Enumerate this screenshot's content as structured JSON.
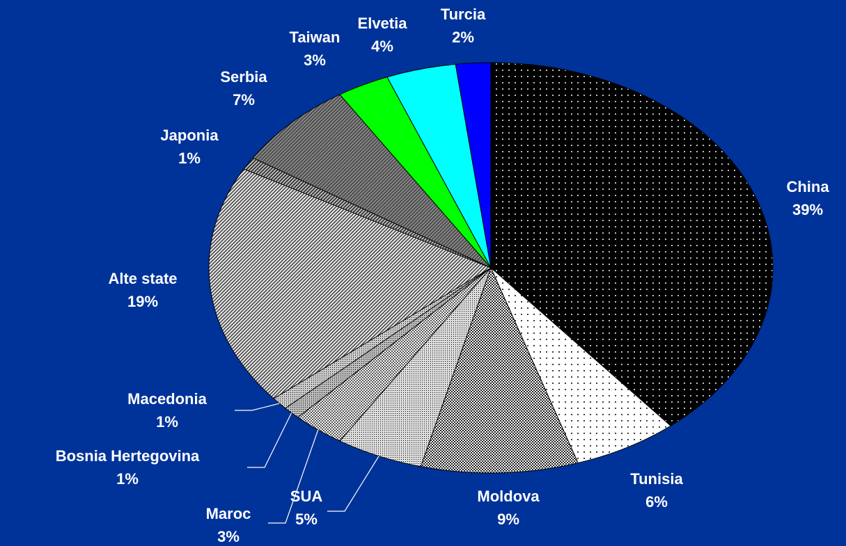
{
  "chart_data": {
    "type": "pie",
    "categories": [
      "China",
      "Tunisia",
      "Moldova",
      "SUA",
      "Maroc",
      "Bosnia Hertegovina",
      "Macedonia",
      "Alte state",
      "Japonia",
      "Serbia",
      "Taiwan",
      "Elvetia",
      "Turcia"
    ],
    "values": [
      39,
      6,
      9,
      5,
      3,
      1,
      1,
      19,
      1,
      7,
      3,
      4,
      2
    ],
    "value_labels": [
      "39%",
      "6%",
      "9%",
      "5%",
      "3%",
      "1%",
      "1%",
      "19%",
      "1%",
      "7%",
      "3%",
      "4%",
      "2%"
    ],
    "colors": [
      "#000000",
      "#ffffff",
      "#222222",
      "#dddddd",
      "#555555",
      "#bbbbbb",
      "#cccccc",
      "#eeeeee",
      "#333333",
      "#888888",
      "#00ff00",
      "#00ffff",
      "#0000ff"
    ]
  }
}
